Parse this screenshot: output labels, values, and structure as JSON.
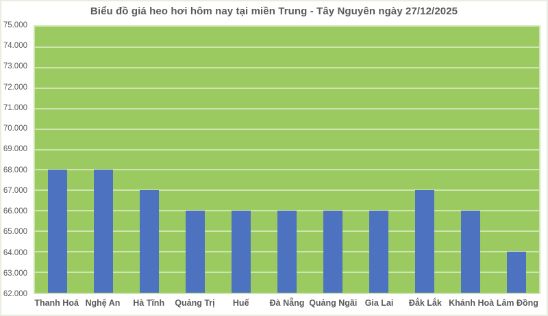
{
  "chart_data": {
    "type": "bar",
    "title": "Biểu đồ giá heo hơi hôm nay tại miền Trung - Tây Nguyên ngày 27/12/2025",
    "categories": [
      "Thanh Hoá",
      "Nghệ An",
      "Hà Tĩnh",
      "Quảng Trị",
      "Huế",
      "Đà Nẵng",
      "Quảng Ngãi",
      "Gia Lai",
      "Đắk Lắk",
      "Khánh Hoà",
      "Lâm Đồng"
    ],
    "values": [
      68000,
      68000,
      67000,
      66000,
      66000,
      66000,
      66000,
      66000,
      67000,
      66000,
      64000
    ],
    "xlabel": "",
    "ylabel": "",
    "ylim": [
      62000,
      75000
    ],
    "y_tick_values": [
      75000,
      74000,
      73000,
      72000,
      71000,
      70000,
      69000,
      68000,
      67000,
      66000,
      65000,
      64000,
      63000,
      62000
    ],
    "y_tick_labels": [
      "75.000",
      "74.000",
      "73.000",
      "72.000",
      "71.000",
      "70.000",
      "69.000",
      "68.000",
      "67.000",
      "66.000",
      "65.000",
      "64.000",
      "63.000",
      "62.000"
    ],
    "grid": true,
    "legend": false,
    "colors": {
      "bar": "#4d73c0",
      "plot_background": "#9bca60",
      "gridline": "#cde5b0",
      "text": "#595959",
      "frame_border": "#e7ede0",
      "background": "#ffffff"
    }
  }
}
